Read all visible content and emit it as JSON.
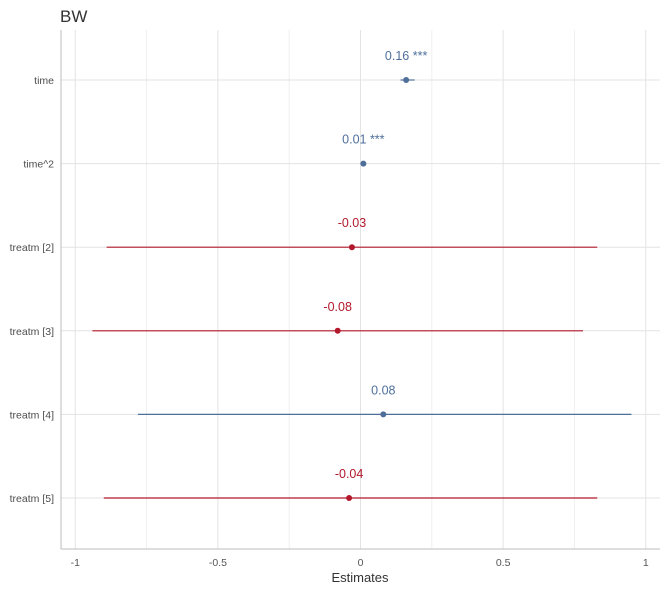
{
  "chart_data": {
    "type": "forest",
    "title": "BW",
    "xlabel": "Estimates",
    "ylabel": "",
    "xlim": [
      -1.05,
      1.05
    ],
    "x_ticks": [
      -1,
      -0.5,
      0,
      0.5,
      1
    ],
    "x_tick_labels": [
      "-1",
      "-0.5",
      "0",
      "0.5",
      "1"
    ],
    "grid": true,
    "colors": {
      "positive": "#4f6f9b",
      "negative": "#b2182b",
      "grid": "#e3e3e3",
      "axis": "#bdbdbd"
    },
    "terms": [
      {
        "term": "time",
        "estimate": 0.16,
        "ci_low": 0.14,
        "ci_high": 0.19,
        "label": "0.16 ***"
      },
      {
        "term": "time^2",
        "estimate": 0.01,
        "ci_low": 0.005,
        "ci_high": 0.015,
        "label": "0.01 ***"
      },
      {
        "term": "treatm [2]",
        "estimate": -0.03,
        "ci_low": -0.89,
        "ci_high": 0.83,
        "label": "-0.03"
      },
      {
        "term": "treatm [3]",
        "estimate": -0.08,
        "ci_low": -0.94,
        "ci_high": 0.78,
        "label": "-0.08"
      },
      {
        "term": "treatm [4]",
        "estimate": 0.08,
        "ci_low": -0.78,
        "ci_high": 0.95,
        "label": "0.08"
      },
      {
        "term": "treatm [5]",
        "estimate": -0.04,
        "ci_low": -0.9,
        "ci_high": 0.83,
        "label": "-0.04"
      }
    ]
  }
}
